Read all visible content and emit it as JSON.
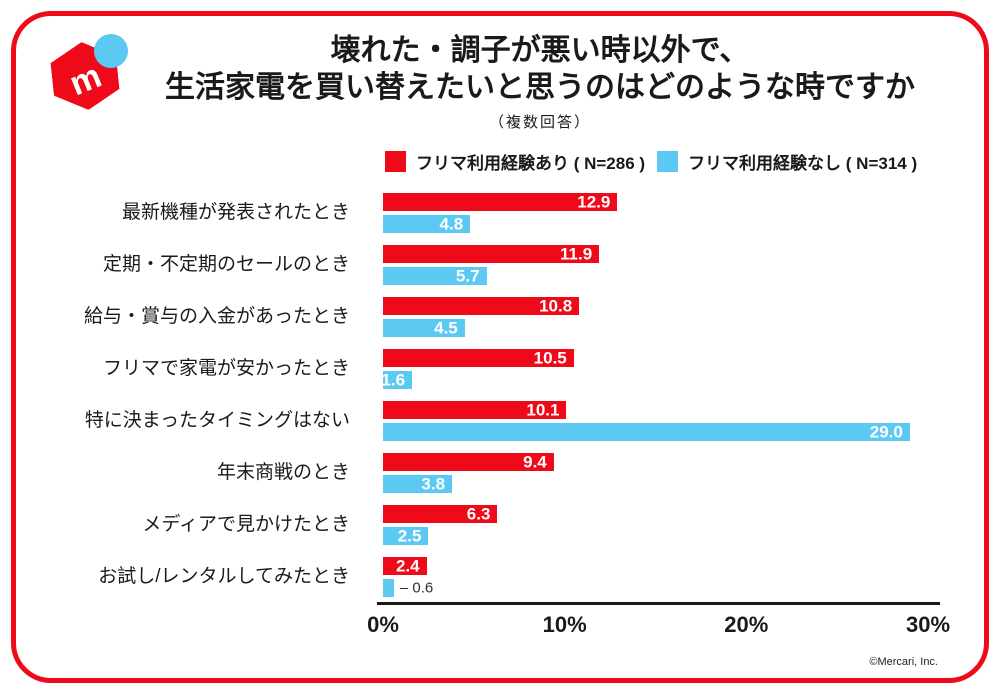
{
  "frame": {
    "border_color": "#ee0a19",
    "background": "#ffffff"
  },
  "logo": {
    "letter": "m",
    "box_color": "#ee0a19",
    "dot_color": "#5cc9f3"
  },
  "header": {
    "title_line1": "壊れた・調子が悪い時以外で、",
    "title_line2": "生活家電を買い替えたいと思うのはどのような時ですか",
    "subtitle": "（複数回答）"
  },
  "legend": [
    {
      "key": "experienced",
      "label": "フリマ利用経験あり ( N=286 )",
      "color": "#ee0a19"
    },
    {
      "key": "inexperienced",
      "label": "フリマ利用経験なし ( N=314 )",
      "color": "#5cc9f3"
    }
  ],
  "chart_data": {
    "type": "bar",
    "orientation": "horizontal",
    "title": "壊れた・調子が悪い時以外で、生活家電を買い替えたいと思うのはどのような時ですか（複数回答）",
    "categories": [
      "最新機種が発表されたとき",
      "定期・不定期のセールのとき",
      "給与・賞与の入金があったとき",
      "フリマで家電が安かったとき",
      "特に決まったタイミングはない",
      "年末商戦のとき",
      "メディアで見かけたとき",
      "お試し/レンタルしてみたとき"
    ],
    "series": [
      {
        "key": "experienced",
        "name": "フリマ利用経験あり ( N=286 )",
        "color": "#ee0a19",
        "values": [
          12.9,
          11.9,
          10.8,
          10.5,
          10.1,
          9.4,
          6.3,
          2.4
        ],
        "label_outside_indices": []
      },
      {
        "key": "inexperienced",
        "name": "フリマ利用経験なし ( N=314 )",
        "color": "#5cc9f3",
        "values": [
          4.8,
          5.7,
          4.5,
          1.6,
          29.0,
          3.8,
          2.5,
          0.6
        ],
        "label_outside_indices": [
          7
        ]
      }
    ],
    "xlim": [
      0,
      30
    ],
    "x_ticks": [
      {
        "label": "0%",
        "pos": 0
      },
      {
        "label": "10%",
        "pos": 33.333
      },
      {
        "label": "20%",
        "pos": 66.667
      },
      {
        "label": "30%",
        "pos": 100
      }
    ],
    "xlabel": "",
    "ylabel": "",
    "grid": false,
    "legend_position": "top",
    "value_labels": "inside-end",
    "outside_label_dash": "–"
  },
  "footer": {
    "copyright": "©Mercari, Inc."
  }
}
